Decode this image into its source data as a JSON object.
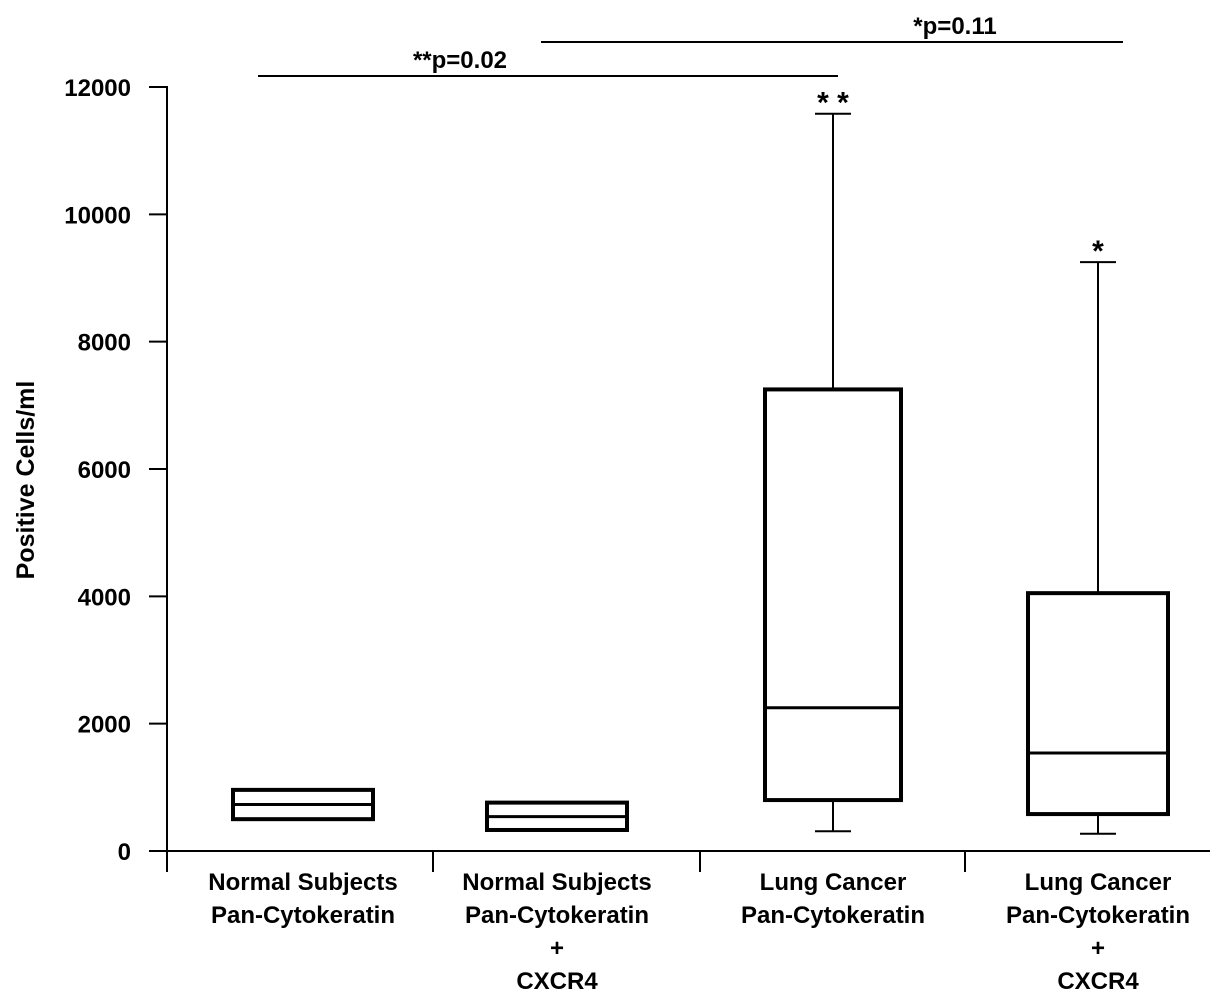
{
  "chart_data": {
    "type": "box",
    "ylabel": "Positive Cells/ml",
    "ylim": [
      0,
      12000
    ],
    "yticks": [
      0,
      2000,
      4000,
      6000,
      8000,
      10000,
      12000
    ],
    "categories": [
      [
        "Normal Subjects",
        "Pan-Cytokeratin"
      ],
      [
        "Normal Subjects",
        "Pan-Cytokeratin",
        "+",
        "CXCR4"
      ],
      [
        "Lung Cancer",
        "Pan-Cytokeratin"
      ],
      [
        "Lung Cancer",
        "Pan-Cytokeratin",
        "+",
        "CXCR4"
      ]
    ],
    "boxes": [
      {
        "min": 500,
        "q1": 500,
        "median": 730,
        "q3": 960,
        "max": 960
      },
      {
        "min": 330,
        "q1": 330,
        "median": 540,
        "q3": 760,
        "max": 760
      },
      {
        "min": 310,
        "q1": 800,
        "median": 2250,
        "q3": 7250,
        "max": 11580
      },
      {
        "min": 270,
        "q1": 580,
        "median": 1540,
        "q3": 4050,
        "max": 9250
      }
    ],
    "markers": [
      {
        "box": 2,
        "text": "* *"
      },
      {
        "box": 3,
        "text": "*"
      }
    ],
    "comparisons": [
      {
        "from": 0,
        "to": 2,
        "label": "**p=0.02"
      },
      {
        "from": 1,
        "to": 3,
        "label": "*p=0.11"
      }
    ]
  }
}
